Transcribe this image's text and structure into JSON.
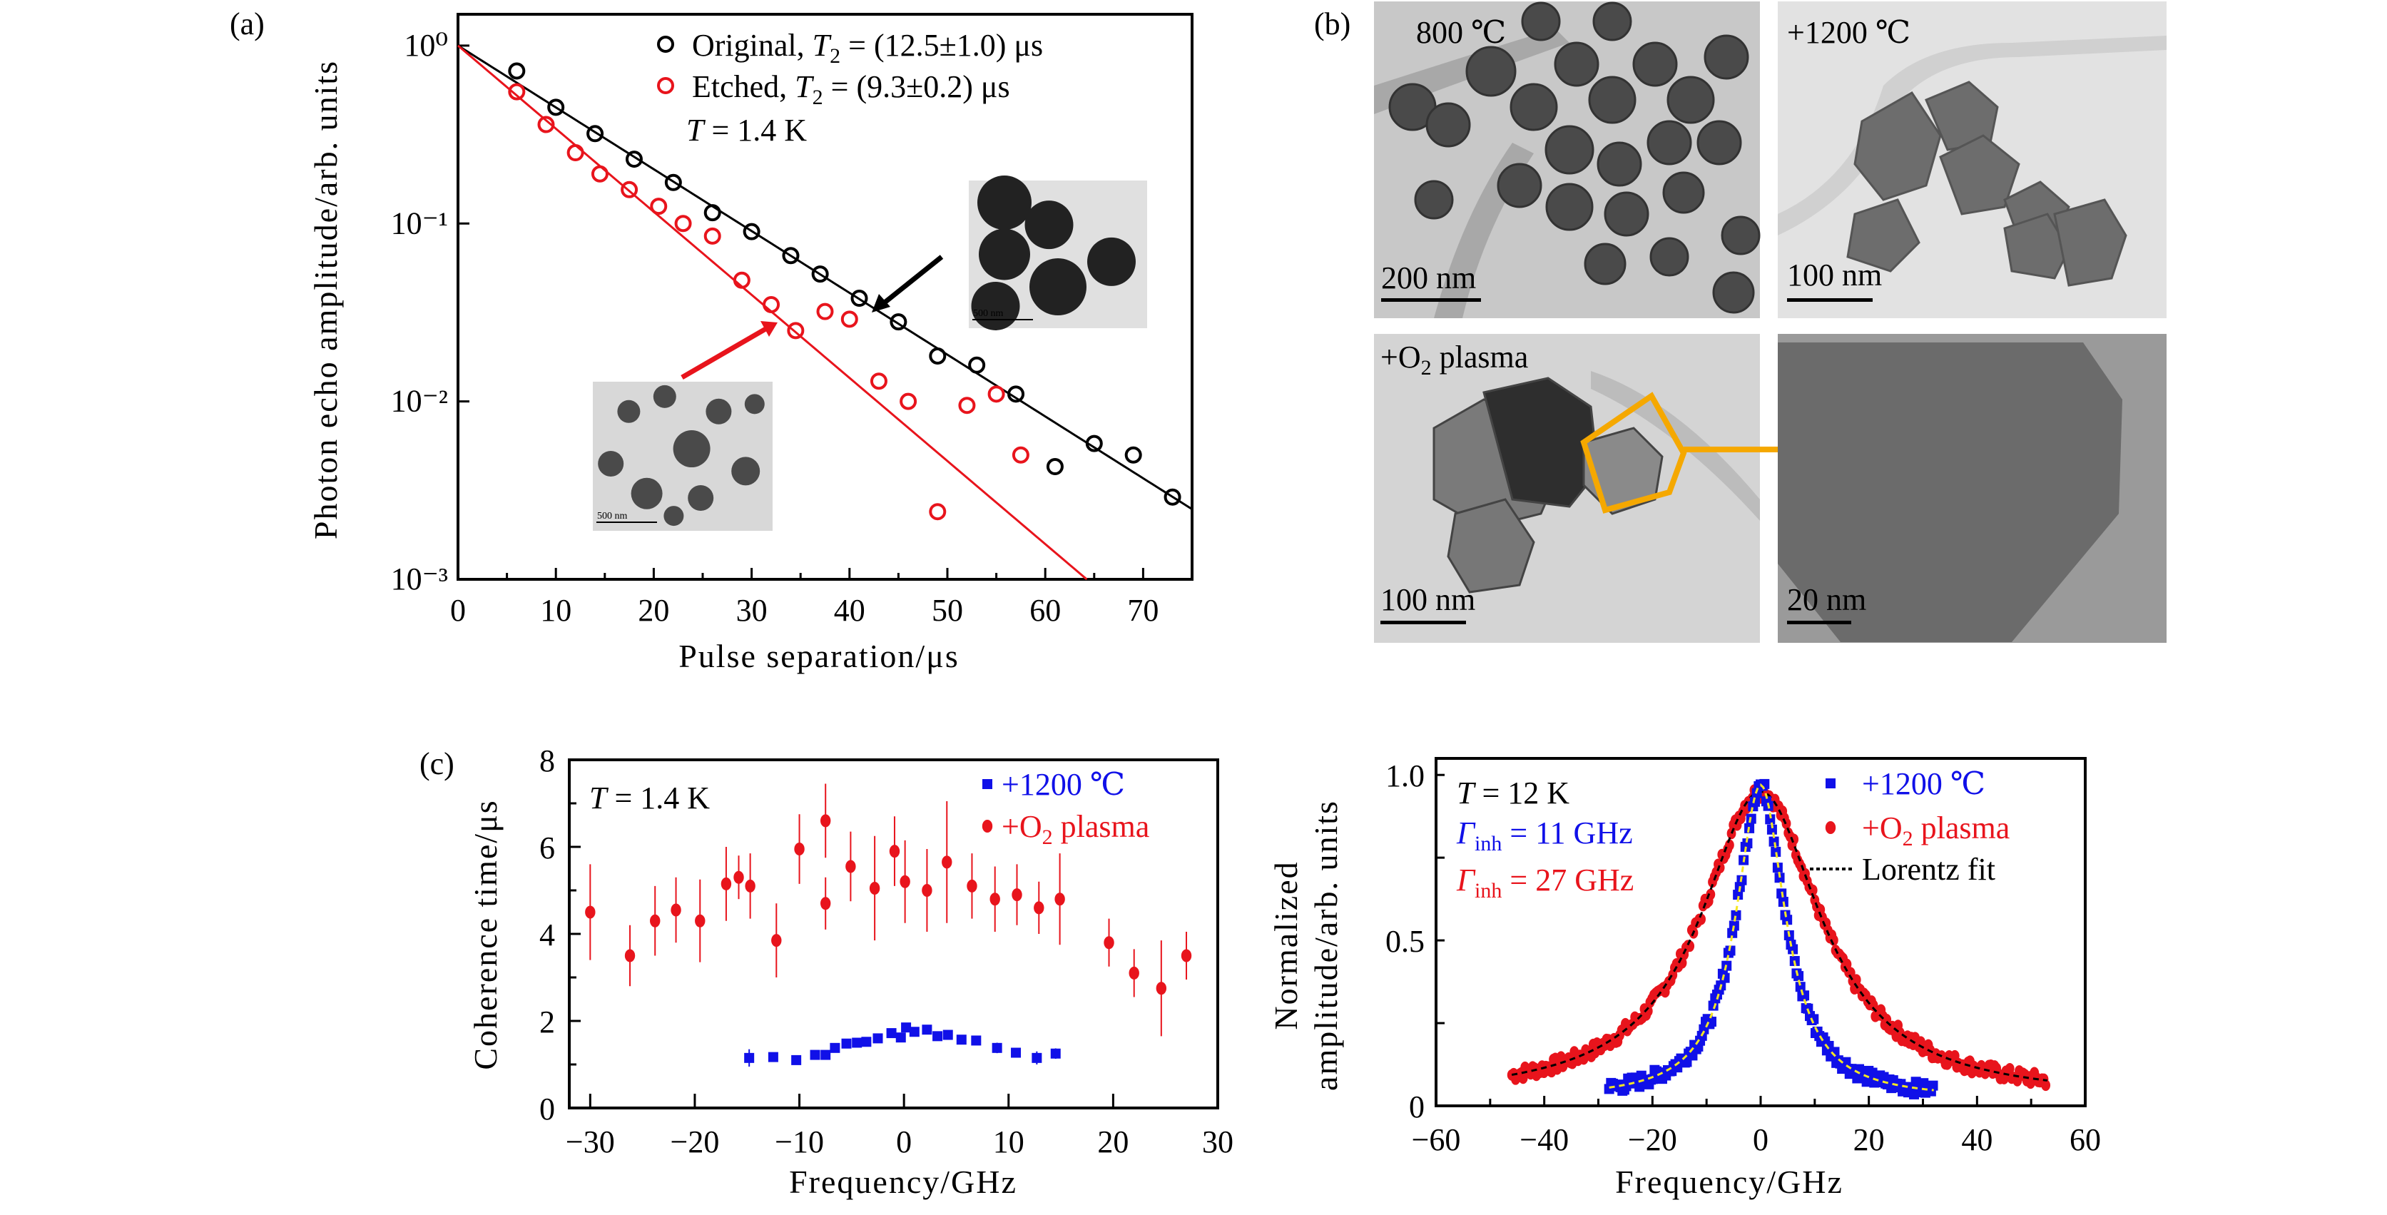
{
  "figure": {
    "panel_labels": {
      "a": "(a)",
      "b": "(b)",
      "c": "(c)"
    }
  },
  "chart_data": [
    {
      "id": "a",
      "type": "scatter",
      "xlabel": "Pulse separation/μs",
      "ylabel": "Photon echo amplitude/arb. units",
      "xlim": [
        0,
        75
      ],
      "ylim": [
        0.001,
        1.5
      ],
      "yscale": "log",
      "xticks": [
        0,
        10,
        20,
        30,
        40,
        50,
        60,
        70
      ],
      "xtick_labels": [
        "0",
        "10",
        "20",
        "30",
        "40",
        "50",
        "60",
        "70"
      ],
      "yticks": [
        1,
        0.1,
        0.01,
        0.001
      ],
      "ytick_labels": [
        "10⁰",
        "10⁻¹",
        "10⁻²",
        "10⁻³"
      ],
      "annotation": {
        "var": "T",
        "text": " = 1.4 K"
      },
      "legend_position": "top-right",
      "series": [
        {
          "name": "Original",
          "legend": {
            "prefix": "Original, ",
            "var": "T",
            "sub": "2",
            "suffix": " = (12.5±1.0) μs"
          },
          "color": "#000000",
          "marker": "open-circle",
          "fit": "exponential",
          "T2": 12.5,
          "x": [
            6,
            10,
            14,
            18,
            22,
            26,
            30,
            34,
            37,
            41,
            45,
            49,
            53,
            57,
            61,
            65,
            69,
            73
          ],
          "y": [
            0.72,
            0.45,
            0.32,
            0.23,
            0.17,
            0.115,
            0.09,
            0.066,
            0.052,
            0.038,
            0.028,
            0.018,
            0.016,
            0.011,
            0.0043,
            0.0058,
            0.005,
            0.0029
          ]
        },
        {
          "name": "Etched",
          "legend": {
            "prefix": "Etched, ",
            "var": "T",
            "sub": "2",
            "suffix": " = (9.3±0.2) μs"
          },
          "color": "#e8141c",
          "marker": "open-circle",
          "fit": "exponential",
          "T2": 9.3,
          "x": [
            6,
            9,
            12,
            14.5,
            17.5,
            20.5,
            23,
            26,
            29,
            32,
            34.5,
            37.5,
            40,
            43,
            46,
            49,
            52,
            55,
            57.5
          ],
          "y": [
            0.55,
            0.36,
            0.25,
            0.19,
            0.155,
            0.125,
            0.1,
            0.085,
            0.048,
            0.035,
            0.025,
            0.032,
            0.029,
            0.013,
            0.01,
            0.0024,
            0.0095,
            0.011,
            0.005
          ]
        }
      ],
      "insets": [
        {
          "target": "Original",
          "scale_bar": "500 nm"
        },
        {
          "target": "Etched",
          "scale_bar": "500 nm"
        }
      ]
    },
    {
      "id": "c-left",
      "type": "scatter",
      "xlabel": "Frequency/GHz",
      "ylabel": "Coherence time/μs",
      "xlim": [
        -32,
        30
      ],
      "ylim": [
        0,
        8
      ],
      "xticks": [
        -30,
        -20,
        -10,
        0,
        10,
        20,
        30
      ],
      "xtick_labels": [
        "−30",
        "−20",
        "−10",
        "0",
        "10",
        "20",
        "30"
      ],
      "yticks": [
        0,
        2,
        4,
        6,
        8
      ],
      "ytick_labels": [
        "0",
        "2",
        "4",
        "6",
        "8"
      ],
      "annotation": {
        "var": "T",
        "text": " = 1.4 K"
      },
      "legend_position": "top-right",
      "series": [
        {
          "name": "+1200 ℃",
          "legend": {
            "prefix": "+1200 ℃"
          },
          "color": "#1010e8",
          "marker": "square",
          "x": [
            -14.8,
            -12.5,
            -10.3,
            -8.5,
            -7.5,
            -6.6,
            -5.5,
            -4.5,
            -3.6,
            -2.5,
            -1.2,
            -0.3,
            0.2,
            1.0,
            2.2,
            3.2,
            4.2,
            5.5,
            6.9,
            8.9,
            10.7,
            12.7,
            14.5
          ],
          "y": [
            1.15,
            1.17,
            1.1,
            1.22,
            1.22,
            1.38,
            1.48,
            1.5,
            1.52,
            1.6,
            1.72,
            1.62,
            1.85,
            1.75,
            1.8,
            1.65,
            1.68,
            1.57,
            1.55,
            1.38,
            1.27,
            1.15,
            1.25
          ],
          "err": [
            0.2,
            0.1,
            0.05,
            0.05,
            0.1,
            0.05,
            0.05,
            0.05,
            0.05,
            0.1,
            0.05,
            0.08,
            0.05,
            0.05,
            0.05,
            0.05,
            0.05,
            0.05,
            0.05,
            0.12,
            0.05,
            0.15,
            0.12
          ]
        },
        {
          "name": "+O2 plasma",
          "legend": {
            "prefix": "+O",
            "sub": "2",
            "suffix": " plasma"
          },
          "color": "#e8141c",
          "marker": "filled-circle",
          "x": [
            -30,
            -26.2,
            -23.8,
            -21.8,
            -19.5,
            -17,
            -15.8,
            -14.7,
            -12.2,
            -10,
            -7.5,
            -7.5,
            -5.1,
            -2.8,
            -0.9,
            0.1,
            2.2,
            4.1,
            6.5,
            8.7,
            10.8,
            12.9,
            14.9,
            19.6,
            22,
            24.6,
            27
          ],
          "y": [
            4.5,
            3.5,
            4.3,
            4.55,
            4.3,
            5.15,
            5.3,
            5.1,
            3.85,
            5.95,
            6.6,
            4.7,
            5.55,
            5.05,
            5.9,
            5.2,
            5.0,
            5.65,
            5.1,
            4.8,
            4.9,
            4.6,
            4.8,
            3.8,
            3.1,
            2.75,
            3.5
          ],
          "err": [
            1.1,
            0.7,
            0.8,
            0.75,
            0.95,
            0.85,
            0.5,
            0.75,
            0.85,
            0.8,
            0.85,
            0.6,
            0.8,
            1.2,
            0.8,
            0.95,
            0.95,
            1.4,
            0.75,
            0.75,
            0.7,
            0.6,
            1.05,
            0.55,
            0.55,
            1.1,
            0.55
          ]
        }
      ]
    },
    {
      "id": "c-right",
      "type": "scatter",
      "xlabel": "Frequency/GHz",
      "ylabel": [
        "Normalized",
        "amplitude/arb. units"
      ],
      "xlim": [
        -60,
        60
      ],
      "ylim": [
        0,
        1.05
      ],
      "xticks": [
        -60,
        -40,
        -20,
        0,
        20,
        40,
        60
      ],
      "xtick_labels": [
        "−60",
        "−40",
        "−20",
        "0",
        "20",
        "40",
        "60"
      ],
      "yticks": [
        0,
        0.5,
        1.0
      ],
      "ytick_labels": [
        "0",
        "0.5",
        "1.0"
      ],
      "annotation": {
        "var": "T",
        "text": " = 12 K"
      },
      "legend_position": "top-right",
      "fit_legend": "Lorentz fit",
      "series": [
        {
          "name": "+1200 ℃",
          "legend": {
            "prefix": "+1200 ℃"
          },
          "color": "#1010e8",
          "marker": "square",
          "fit_color": "#f5e623",
          "fwhm_label": {
            "var": "Γ",
            "sub": "inh",
            "suffix": " = 11 GHz"
          },
          "lorentz_fwhm": 11,
          "peak": 0.95,
          "x_range": [
            -28,
            32
          ]
        },
        {
          "name": "+O2 plasma",
          "legend": {
            "prefix": "+O",
            "sub": "2",
            "suffix": " plasma"
          },
          "color": "#e8141c",
          "marker": "filled-circle",
          "fit_color": "#000000",
          "fwhm_label": {
            "var": "Γ",
            "sub": "inh",
            "suffix": " = 27 GHz"
          },
          "lorentz_fwhm": 27,
          "peak": 0.93,
          "x_range": [
            -46,
            53
          ]
        }
      ]
    }
  ],
  "figure_b": {
    "images": [
      {
        "label": "800 ℃",
        "scale_bar": "200 nm"
      },
      {
        "label": "+1200 ℃",
        "scale_bar": "100 nm"
      },
      {
        "label_prefix": "+O",
        "label_sub": "2",
        "label_suffix": " plasma",
        "scale_bar": "100 nm"
      },
      {
        "label": "",
        "scale_bar": "20 nm"
      }
    ],
    "highlight_color": "#f5a800"
  }
}
